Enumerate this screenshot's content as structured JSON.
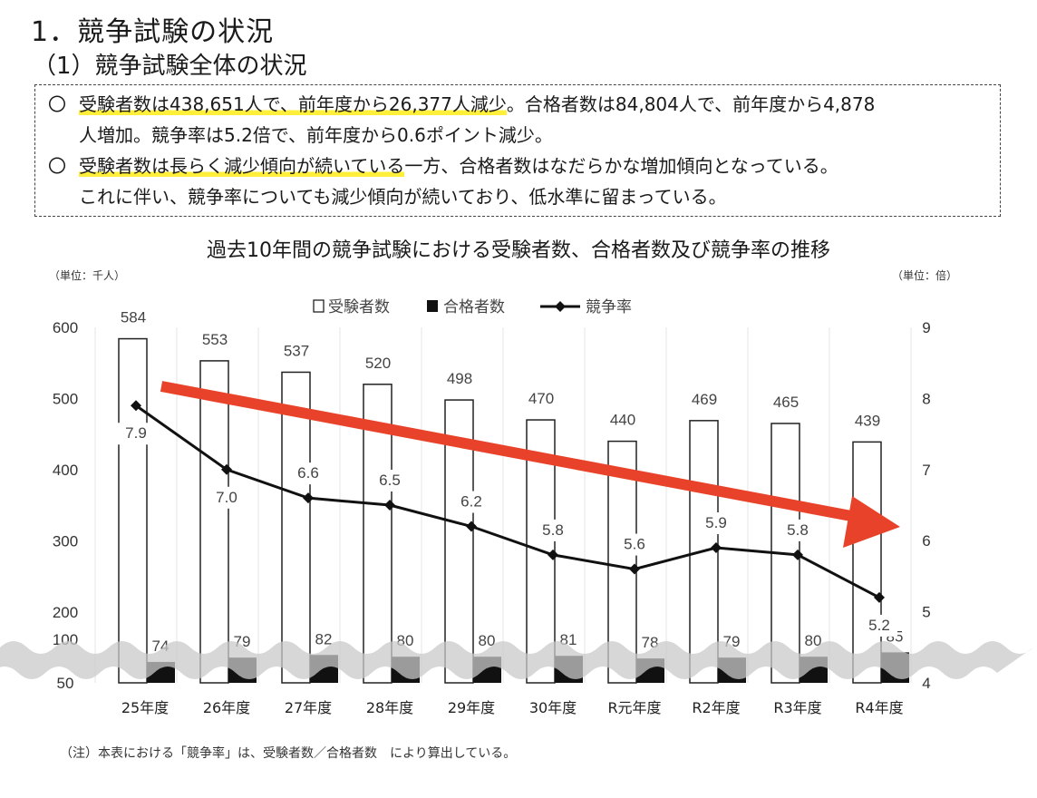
{
  "heading": "1．競争試験の状況",
  "subheading": "（1）競争試験全体の状況",
  "bullets": {
    "mark": "〇",
    "b1_hl": "受験者数は438,651人で、前年度から26,377人減少",
    "b1_rest": "。合格者数は84,804人で、前年度から4,878",
    "b1_cont": "人増加。競争率は5.2倍で、前年度から0.6ポイント減少。",
    "b2_hl": "受験者数は長らく減少傾向が続いている",
    "b2_rest": "一方、合格者数はなだらかな増加傾向となっている。",
    "b2_cont": "これに伴い、競争率についても減少傾向が続いており、低水準に留まっている。"
  },
  "note": "（注）本表における「競争率」は、受験者数／合格者数　により算出している。",
  "chart_data": {
    "type": "bar",
    "title": "過去10年間の競争試験における受験者数、合格者数及び競争率の推移",
    "left_unit": "（単位：千人）",
    "right_unit": "（単位：倍）",
    "categories": [
      "25年度",
      "26年度",
      "27年度",
      "28年度",
      "29年度",
      "30年度",
      "R元年度",
      "R2年度",
      "R3年度",
      "R4年度"
    ],
    "series": [
      {
        "name": "受験者数",
        "type": "bar",
        "axis": "left",
        "values": [
          584,
          553,
          537,
          520,
          498,
          470,
          440,
          469,
          465,
          439
        ],
        "color": "#ffffff"
      },
      {
        "name": "合格者数",
        "type": "bar",
        "axis": "left",
        "values": [
          74,
          79,
          82,
          80,
          80,
          81,
          78,
          79,
          80,
          85
        ],
        "color": "#111111"
      },
      {
        "name": "競争率",
        "type": "line",
        "axis": "right",
        "values": [
          7.9,
          7.0,
          6.6,
          6.5,
          6.2,
          5.8,
          5.6,
          5.9,
          5.8,
          5.2
        ],
        "color": "#111111"
      }
    ],
    "left_ticks": [
      "600",
      "500",
      "400",
      "300",
      "200",
      "100",
      "50"
    ],
    "right_ticks": [
      "9",
      "8",
      "7",
      "6",
      "5",
      "4"
    ],
    "left_axis_scale": "broken: 200–600 linear, 50–100 compressed",
    "ylim_right": [
      4,
      9
    ],
    "legend": [
      "□受験者数",
      "■合格者数",
      "◆競争率"
    ],
    "legend_position": "top-center",
    "annotation": "red downward trend arrow",
    "trend_arrow_color": "#e8432a"
  }
}
